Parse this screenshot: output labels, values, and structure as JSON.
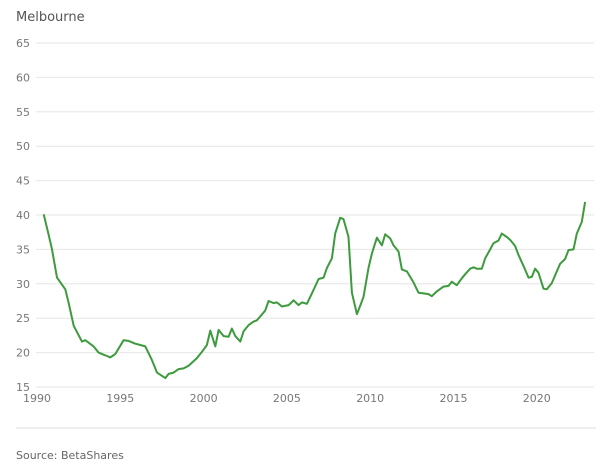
{
  "chart_data": {
    "type": "line",
    "title": "Melbourne",
    "xlabel": "",
    "ylabel": "",
    "xlim": [
      1990,
      2023.4
    ],
    "ylim": [
      15,
      65
    ],
    "x_ticks": [
      1990,
      1995,
      2000,
      2005,
      2010,
      2015,
      2020
    ],
    "y_ticks": [
      15,
      20,
      25,
      30,
      35,
      40,
      45,
      50,
      55,
      60,
      65
    ],
    "grid": true,
    "line_color": "#3d9a3d",
    "source": "Source: BetaShares",
    "series": [
      {
        "points": [
          [
            1990.4,
            40.1
          ],
          [
            1990.7,
            37.1
          ],
          [
            1990.9,
            35
          ],
          [
            1991.2,
            30.9
          ],
          [
            1991.7,
            29.2
          ],
          [
            1991.9,
            27.2
          ],
          [
            1992.2,
            23.9
          ],
          [
            1992.7,
            21.6
          ],
          [
            1992.9,
            21.8
          ],
          [
            1993.4,
            20.9
          ],
          [
            1993.7,
            20
          ],
          [
            1994.0,
            19.7
          ],
          [
            1994.2,
            19.5
          ],
          [
            1994.4,
            19.3
          ],
          [
            1994.7,
            19.8
          ],
          [
            1995.2,
            21.8
          ],
          [
            1995.5,
            21.7
          ],
          [
            1995.9,
            21.3
          ],
          [
            1996.2,
            21.1
          ],
          [
            1996.5,
            20.9
          ],
          [
            1996.9,
            18.9
          ],
          [
            1997.2,
            17.1
          ],
          [
            1997.7,
            16.3
          ],
          [
            1997.9,
            16.9
          ],
          [
            1998.2,
            17.1
          ],
          [
            1998.5,
            17.6
          ],
          [
            1998.8,
            17.7
          ],
          [
            1999.1,
            18.1
          ],
          [
            1999.6,
            19.2
          ],
          [
            1999.9,
            20.1
          ],
          [
            2000.2,
            21.1
          ],
          [
            2000.4,
            23.2
          ],
          [
            2000.7,
            20.9
          ],
          [
            2000.9,
            23.3
          ],
          [
            2001.2,
            22.4
          ],
          [
            2001.5,
            22.3
          ],
          [
            2001.7,
            23.5
          ],
          [
            2001.9,
            22.4
          ],
          [
            2002.2,
            21.6
          ],
          [
            2002.4,
            23.1
          ],
          [
            2002.7,
            24.0
          ],
          [
            2003.0,
            24.5
          ],
          [
            2003.2,
            24.7
          ],
          [
            2003.7,
            26.1
          ],
          [
            2003.9,
            27.5
          ],
          [
            2004.2,
            27.2
          ],
          [
            2004.4,
            27.3
          ],
          [
            2004.7,
            26.7
          ],
          [
            2005.1,
            26.9
          ],
          [
            2005.4,
            27.6
          ],
          [
            2005.7,
            26.9
          ],
          [
            2005.9,
            27.3
          ],
          [
            2006.2,
            27.1
          ],
          [
            2006.5,
            28.6
          ],
          [
            2006.9,
            30.7
          ],
          [
            2007.2,
            30.9
          ],
          [
            2007.4,
            32.3
          ],
          [
            2007.7,
            33.7
          ],
          [
            2007.9,
            37.3
          ],
          [
            2008.2,
            39.6
          ],
          [
            2008.4,
            39.4
          ],
          [
            2008.7,
            36.8
          ],
          [
            2008.9,
            28.7
          ],
          [
            2009.2,
            25.6
          ],
          [
            2009.4,
            26.8
          ],
          [
            2009.6,
            28.1
          ],
          [
            2009.9,
            32.3
          ],
          [
            2010.1,
            34.4
          ],
          [
            2010.4,
            36.7
          ],
          [
            2010.7,
            35.6
          ],
          [
            2010.9,
            37.2
          ],
          [
            2011.2,
            36.6
          ],
          [
            2011.4,
            35.6
          ],
          [
            2011.7,
            34.7
          ],
          [
            2011.9,
            32.1
          ],
          [
            2012.2,
            31.8
          ],
          [
            2012.6,
            30.2
          ],
          [
            2012.9,
            28.7
          ],
          [
            2013.2,
            28.6
          ],
          [
            2013.5,
            28.5
          ],
          [
            2013.7,
            28.2
          ],
          [
            2014.0,
            28.9
          ],
          [
            2014.4,
            29.6
          ],
          [
            2014.7,
            29.7
          ],
          [
            2014.9,
            30.3
          ],
          [
            2015.2,
            29.8
          ],
          [
            2015.5,
            30.8
          ],
          [
            2015.7,
            31.4
          ],
          [
            2016.0,
            32.2
          ],
          [
            2016.2,
            32.4
          ],
          [
            2016.4,
            32.2
          ],
          [
            2016.7,
            32.2
          ],
          [
            2016.9,
            33.7
          ],
          [
            2017.2,
            35
          ],
          [
            2017.4,
            35.9
          ],
          [
            2017.7,
            36.3
          ],
          [
            2017.9,
            37.3
          ],
          [
            2018.2,
            36.8
          ],
          [
            2018.4,
            36.4
          ],
          [
            2018.7,
            35.5
          ],
          [
            2018.9,
            34.2
          ],
          [
            2019.2,
            32.6
          ],
          [
            2019.5,
            30.9
          ],
          [
            2019.7,
            31
          ],
          [
            2019.9,
            32.2
          ],
          [
            2020.1,
            31.6
          ],
          [
            2020.4,
            29.3
          ],
          [
            2020.6,
            29.2
          ],
          [
            2020.9,
            30.1
          ],
          [
            2021.2,
            31.8
          ],
          [
            2021.4,
            32.9
          ],
          [
            2021.7,
            33.6
          ],
          [
            2021.9,
            34.9
          ],
          [
            2022.2,
            35
          ],
          [
            2022.4,
            37.3
          ],
          [
            2022.7,
            39
          ],
          [
            2022.9,
            41.9
          ]
        ]
      }
    ]
  }
}
